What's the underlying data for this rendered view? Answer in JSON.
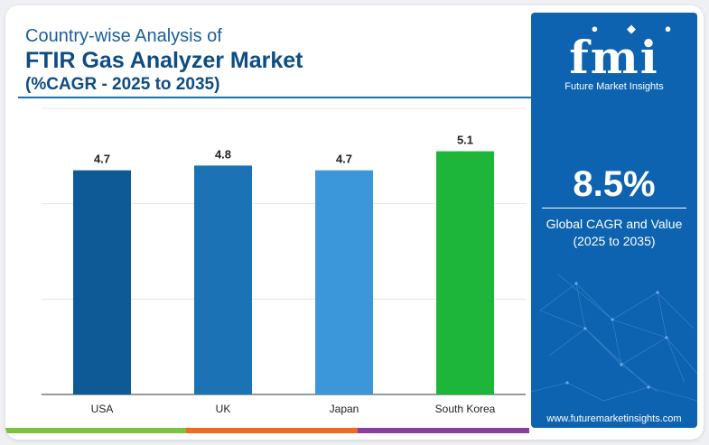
{
  "header": {
    "line1": "Country-wise Analysis of",
    "line2": "FTIR Gas Analyzer Market",
    "line3": "(%CAGR - 2025 to 2035)"
  },
  "chart_data": {
    "type": "bar",
    "categories": [
      "USA",
      "UK",
      "Japan",
      "South Korea"
    ],
    "values": [
      4.7,
      4.8,
      4.7,
      5.1
    ],
    "bar_colors": [
      "#0d5a96",
      "#1b72b4",
      "#3b97da",
      "#1db53a"
    ],
    "ylim": [
      0,
      6
    ],
    "grid": true,
    "xlabel": "",
    "ylabel": ""
  },
  "sidebar": {
    "brand": "fmi",
    "brand_sub": "Future Market Insights",
    "stat_value": "8.5%",
    "stat_label_line1": "Global CAGR and Value",
    "stat_label_line2": "(2025 to 2035)",
    "website": "www.futuremarketinsights.com"
  },
  "accent_colors": [
    "#7dc142",
    "#f26a21",
    "#8b3fa0",
    "#1a6fae"
  ]
}
